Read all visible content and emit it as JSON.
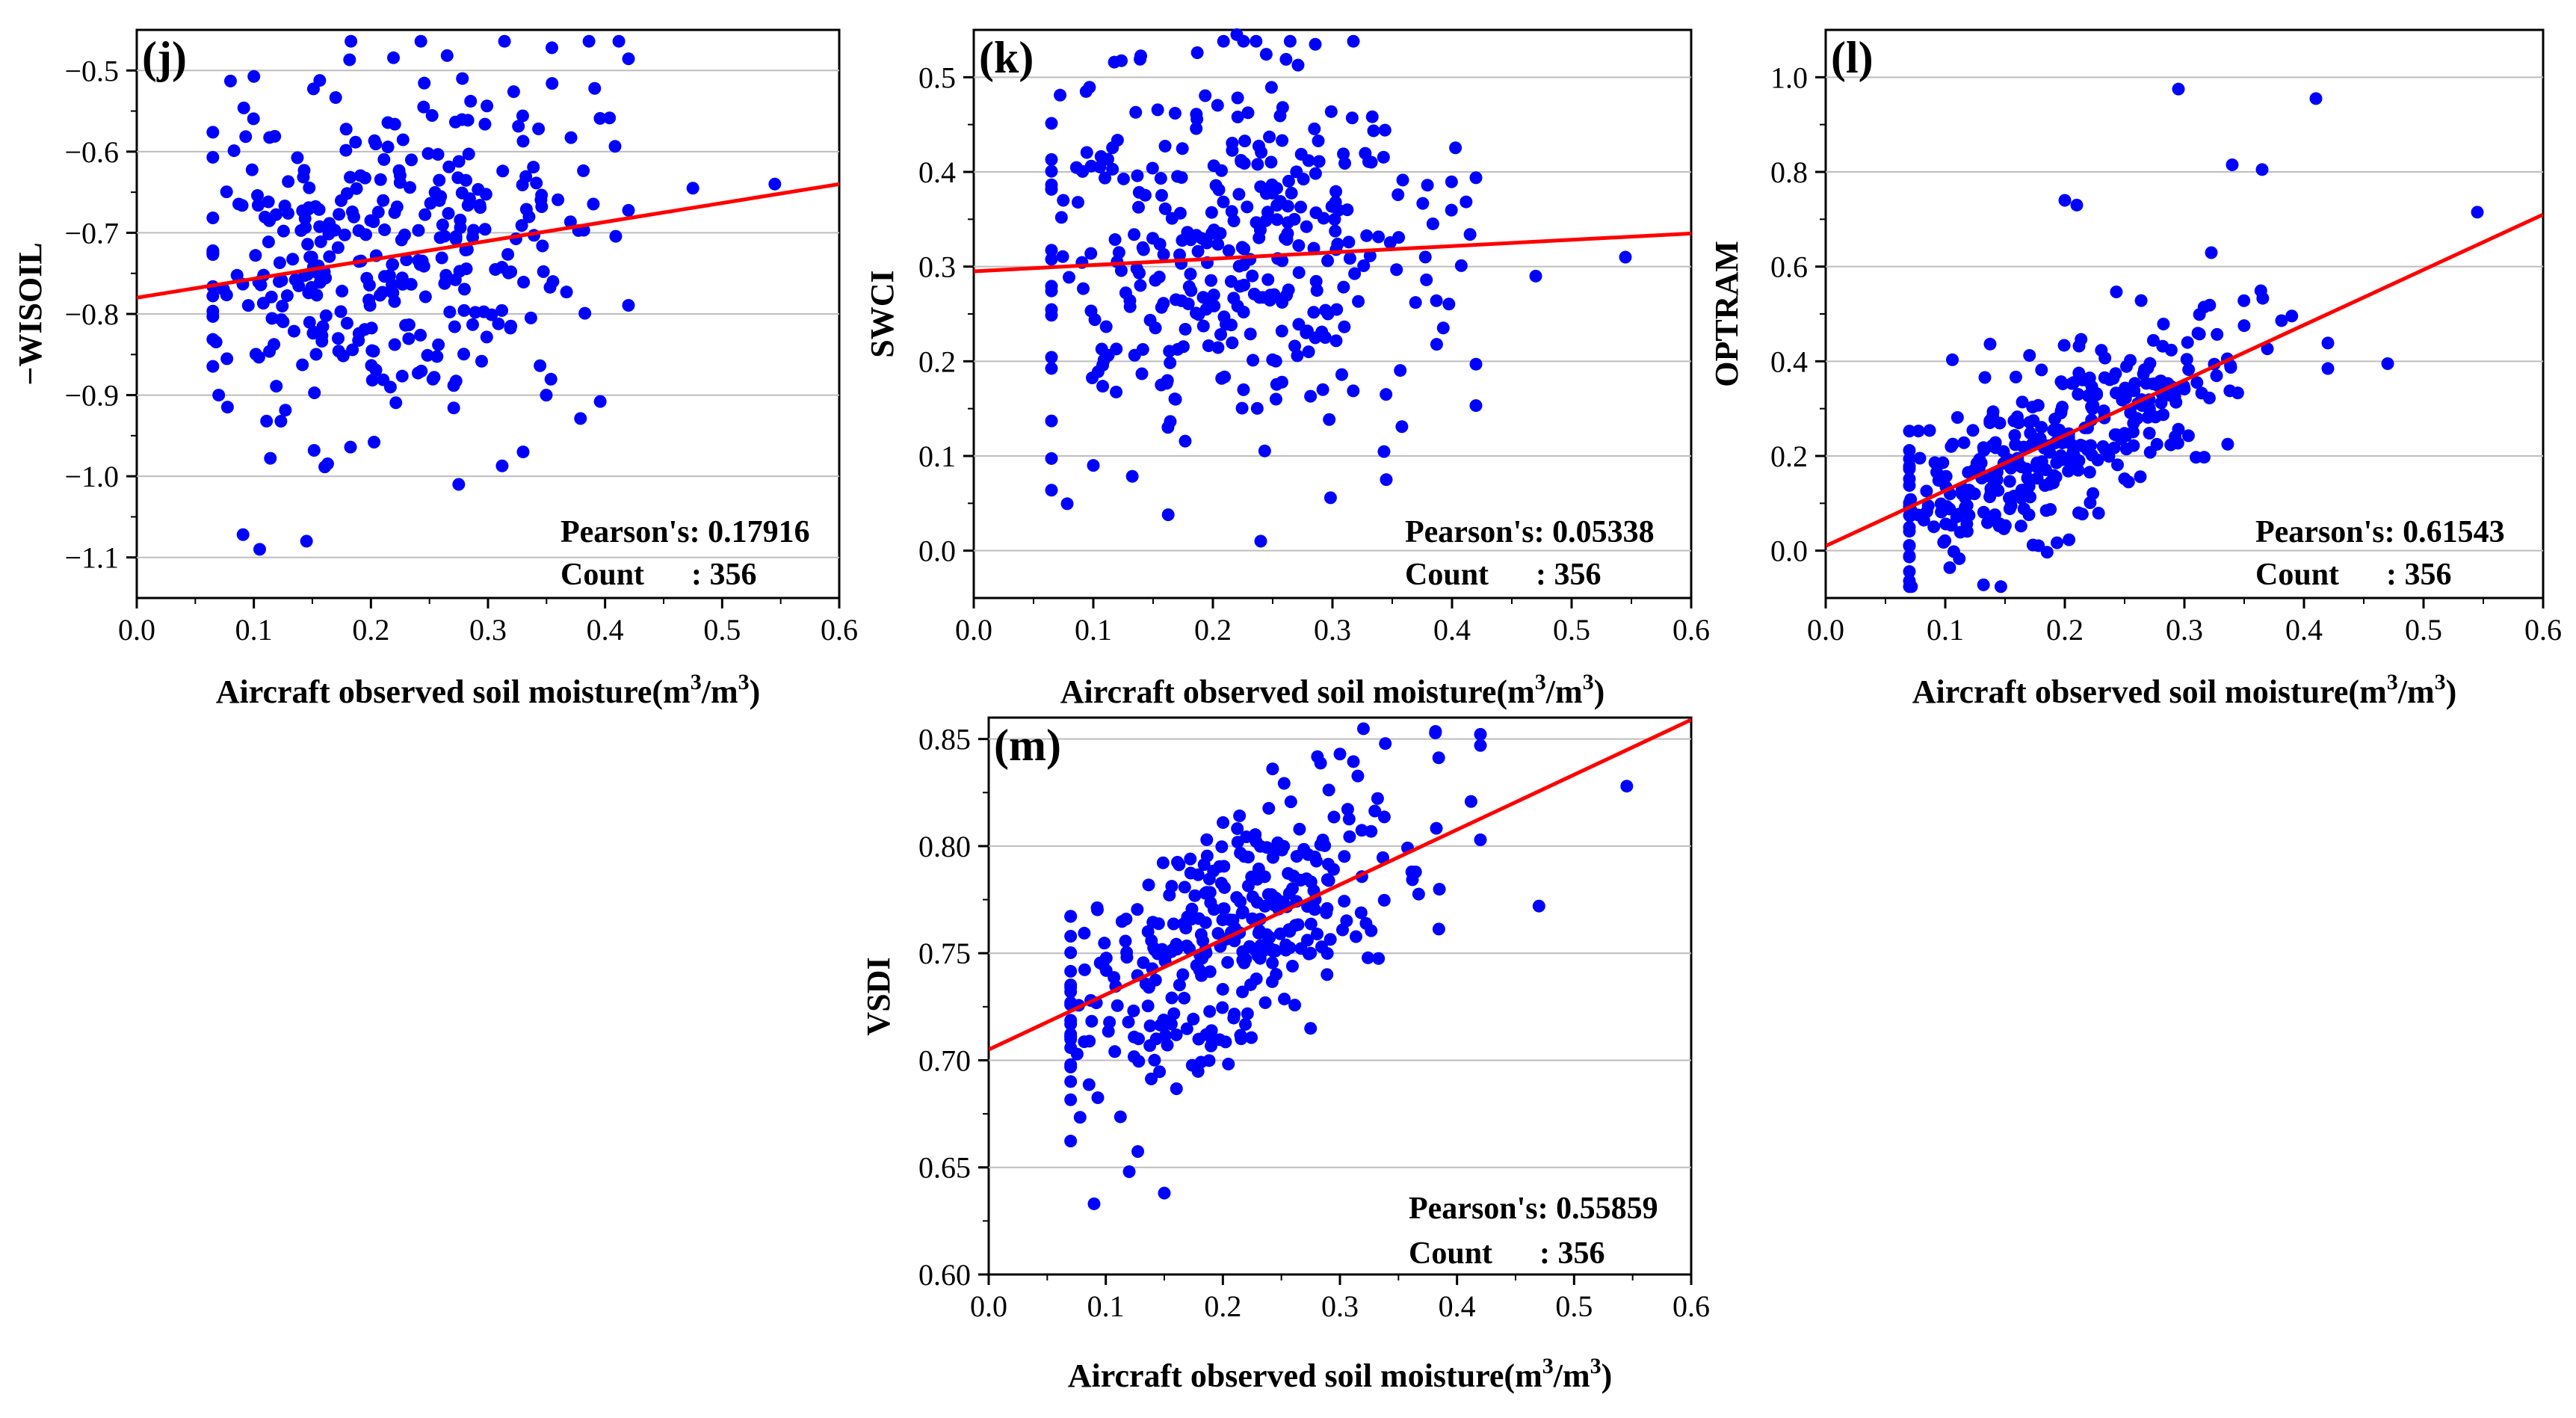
{
  "colors": {
    "points": "#0000ff",
    "fit_line": "#ff0000",
    "grid": "#bdbdbd",
    "axis": "#000000"
  },
  "chart_data": [
    {
      "id": "j",
      "type": "scatter",
      "panel_label": "(j)",
      "title": "",
      "xlabel": {
        "main": "Aircraft observed soil moisture(m",
        "sup": "3",
        "mid": "/m",
        "sup2": "3",
        "end": ")"
      },
      "ylabel": "−WISOIL",
      "xlim": [
        0,
        0.6
      ],
      "ylim": [
        -1.15,
        -0.45
      ],
      "x_ticks": [
        0.0,
        0.1,
        0.2,
        0.3,
        0.4,
        0.5,
        0.6
      ],
      "x_tick_labels": [
        "0.0",
        "0.1",
        "0.2",
        "0.3",
        "0.4",
        "0.5",
        "0.6"
      ],
      "y_ticks": [
        -1.1,
        -1.0,
        -0.9,
        -0.8,
        -0.7,
        -0.6,
        -0.5
      ],
      "y_tick_labels": [
        "−1.1",
        "−1.0",
        "−0.9",
        "−0.8",
        "−0.7",
        "−0.6",
        "−0.5"
      ],
      "fit_line": {
        "x": [
          0.0,
          0.6
        ],
        "y": [
          -0.78,
          -0.64
        ]
      },
      "pearson_label": "Pearson's: 0.17916",
      "count_label": "Count      : 356",
      "generator": {
        "n": 356,
        "seed": 11,
        "slope": 0.233,
        "intercept": -0.78,
        "noise": 0.11,
        "x_mean": 0.21,
        "x_sd": 0.085,
        "x_min": 0.065,
        "x_max": 0.42
      },
      "extra_points": [
        [
          0.475,
          -0.645
        ],
        [
          0.545,
          -0.64
        ],
        [
          0.07,
          -0.9
        ],
        [
          0.105,
          -1.09
        ],
        [
          0.145,
          -1.08
        ],
        [
          0.275,
          -1.01
        ],
        [
          0.33,
          -0.97
        ]
      ]
    },
    {
      "id": "k",
      "type": "scatter",
      "panel_label": "(k)",
      "title": "",
      "xlabel": {
        "main": "Aircraft observed soil moisture(m",
        "sup": "3",
        "mid": "/m",
        "sup2": "3",
        "end": ")"
      },
      "ylabel": "SWCI",
      "xlim": [
        0,
        0.6
      ],
      "ylim": [
        -0.05,
        0.55
      ],
      "x_ticks": [
        0.0,
        0.1,
        0.2,
        0.3,
        0.4,
        0.5,
        0.6
      ],
      "x_tick_labels": [
        "0.0",
        "0.1",
        "0.2",
        "0.3",
        "0.4",
        "0.5",
        "0.6"
      ],
      "y_ticks": [
        0.0,
        0.1,
        0.2,
        0.3,
        0.4,
        0.5
      ],
      "y_tick_labels": [
        "0.0",
        "0.1",
        "0.2",
        "0.3",
        "0.4",
        "0.5"
      ],
      "fit_line": {
        "x": [
          0.0,
          0.6
        ],
        "y": [
          0.295,
          0.335
        ]
      },
      "pearson_label": "Pearson's: 0.05338",
      "count_label": "Count      : 356",
      "generator": {
        "n": 356,
        "seed": 23,
        "slope": 0.067,
        "intercept": 0.295,
        "noise": 0.105,
        "x_mean": 0.21,
        "x_sd": 0.085,
        "x_min": 0.065,
        "x_max": 0.42
      },
      "extra_points": [
        [
          0.22,
          0.545
        ],
        [
          0.24,
          0.01
        ],
        [
          0.47,
          0.29
        ],
        [
          0.545,
          0.31
        ],
        [
          0.345,
          0.075
        ],
        [
          0.1,
          0.09
        ]
      ]
    },
    {
      "id": "l",
      "type": "scatter",
      "panel_label": "(l)",
      "title": "",
      "xlabel": {
        "main": "Aircraft observed soil moisture(m",
        "sup": "3",
        "mid": "/m",
        "sup2": "3",
        "end": ")"
      },
      "ylabel": "OPTRAM",
      "xlim": [
        0,
        0.6
      ],
      "ylim": [
        -0.1,
        1.1
      ],
      "x_ticks": [
        0.0,
        0.1,
        0.2,
        0.3,
        0.4,
        0.5,
        0.6
      ],
      "x_tick_labels": [
        "0.0",
        "0.1",
        "0.2",
        "0.3",
        "0.4",
        "0.5",
        "0.6"
      ],
      "y_ticks": [
        0.0,
        0.2,
        0.4,
        0.6,
        0.8,
        1.0
      ],
      "y_tick_labels": [
        "0.0",
        "0.2",
        "0.4",
        "0.6",
        "0.8",
        "1.0"
      ],
      "fit_line": {
        "x": [
          0.0,
          0.6
        ],
        "y": [
          0.01,
          0.71
        ]
      },
      "pearson_label": "Pearson's: 0.61543",
      "count_label": "Count      : 356",
      "generator": {
        "n": 356,
        "seed": 37,
        "slope": 1.17,
        "intercept": 0.0,
        "noise": 0.09,
        "x_mean": 0.2,
        "x_sd": 0.08,
        "x_min": 0.07,
        "x_max": 0.42
      },
      "extra_points": [
        [
          0.295,
          0.975
        ],
        [
          0.41,
          0.955
        ],
        [
          0.545,
          0.715
        ],
        [
          0.47,
          0.395
        ],
        [
          0.2,
          0.74
        ],
        [
          0.21,
          0.73
        ],
        [
          0.34,
          0.815
        ],
        [
          0.365,
          0.805
        ],
        [
          0.07,
          0.01
        ]
      ]
    },
    {
      "id": "m",
      "type": "scatter",
      "panel_label": "(m)",
      "title": "",
      "xlabel": {
        "main": "Aircraft observed soil moisture(m",
        "sup": "3",
        "mid": "/m",
        "sup2": "3",
        "end": ")"
      },
      "ylabel": "VSDI",
      "xlim": [
        0,
        0.6
      ],
      "ylim": [
        0.6,
        0.86
      ],
      "x_ticks": [
        0.0,
        0.1,
        0.2,
        0.3,
        0.4,
        0.5,
        0.6
      ],
      "x_tick_labels": [
        "0.0",
        "0.1",
        "0.2",
        "0.3",
        "0.4",
        "0.5",
        "0.6"
      ],
      "y_ticks": [
        0.6,
        0.65,
        0.7,
        0.75,
        0.8,
        0.85
      ],
      "y_tick_labels": [
        "0.60",
        "0.65",
        "0.70",
        "0.75",
        "0.80",
        "0.85"
      ],
      "fit_line": {
        "x": [
          0.0,
          0.6
        ],
        "y": [
          0.705,
          0.859
        ]
      },
      "pearson_label": "Pearson's: 0.55859",
      "count_label": "Count      : 356",
      "generator": {
        "n": 356,
        "seed": 53,
        "slope": 0.257,
        "intercept": 0.705,
        "noise": 0.028,
        "x_mean": 0.2,
        "x_sd": 0.08,
        "x_min": 0.07,
        "x_max": 0.42
      },
      "extra_points": [
        [
          0.545,
          0.828
        ],
        [
          0.47,
          0.772
        ],
        [
          0.09,
          0.633
        ],
        [
          0.15,
          0.638
        ],
        [
          0.12,
          0.648
        ],
        [
          0.42,
          0.847
        ],
        [
          0.3,
          0.843
        ]
      ]
    }
  ]
}
